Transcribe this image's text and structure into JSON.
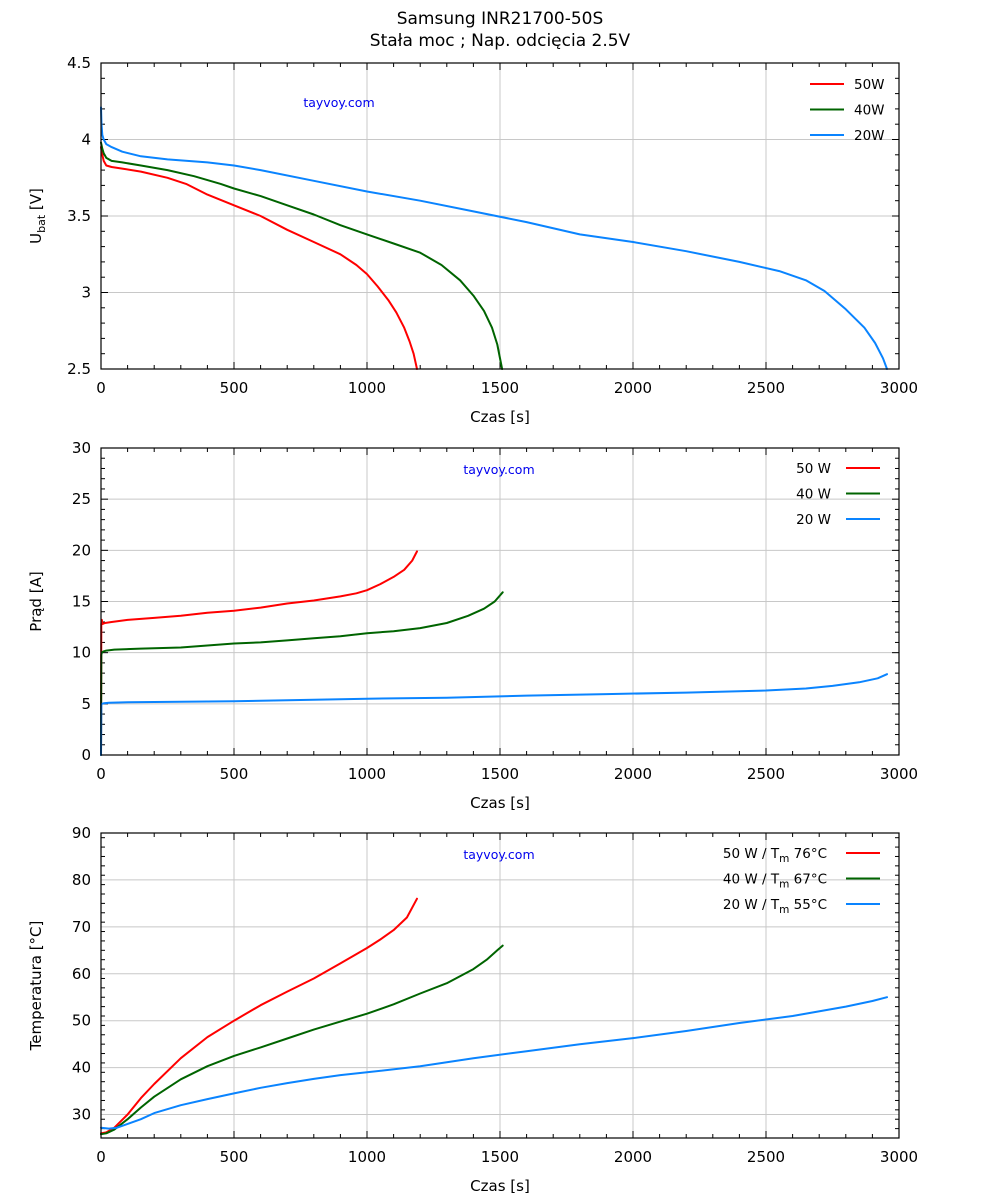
{
  "title": {
    "line1": "Samsung INR21700-50S",
    "line2": "Stała moc  ;  Nap. odcięcia 2.5V"
  },
  "colors": {
    "50W": "#ff0000",
    "40W": "#006400",
    "20W": "#0a84ff",
    "grid": "#c8c8c8",
    "watermark": "#0000ee"
  },
  "chart_data": [
    {
      "type": "line",
      "id": "voltage",
      "title": "",
      "xlabel": "Czas [s]",
      "ylabel": "U_bat [V]",
      "ylabel_main": "U",
      "ylabel_sub": "bat",
      "ylabel_unit": " [V]",
      "xlim": [
        0,
        3000
      ],
      "ylim": [
        2.5,
        4.5
      ],
      "xticks": [
        0,
        500,
        1000,
        1500,
        2000,
        2500,
        3000
      ],
      "yticks": [
        2.5,
        3,
        3.5,
        4,
        4.5
      ],
      "ytick_labels": [
        "2.5",
        "3",
        "3.5",
        "4",
        "4.5"
      ],
      "grid": true,
      "legend_position": "top-right",
      "legend_style": "line-first",
      "watermark": "tayvoy.com",
      "series": [
        {
          "name": "50W",
          "legend": "50W",
          "color_key": "50W",
          "x": [
            0,
            5,
            10,
            20,
            40,
            80,
            150,
            250,
            320,
            400,
            500,
            600,
            700,
            800,
            900,
            960,
            1000,
            1040,
            1080,
            1110,
            1140,
            1160,
            1175,
            1188
          ],
          "y": [
            3.95,
            3.9,
            3.86,
            3.83,
            3.82,
            3.81,
            3.79,
            3.75,
            3.71,
            3.64,
            3.57,
            3.5,
            3.41,
            3.33,
            3.25,
            3.18,
            3.12,
            3.04,
            2.95,
            2.87,
            2.77,
            2.68,
            2.6,
            2.5
          ]
        },
        {
          "name": "40W",
          "legend": "40W",
          "color_key": "40W",
          "x": [
            0,
            5,
            10,
            20,
            40,
            80,
            150,
            250,
            350,
            450,
            500,
            600,
            700,
            800,
            900,
            1000,
            1100,
            1200,
            1280,
            1350,
            1400,
            1440,
            1470,
            1490,
            1508
          ],
          "y": [
            3.98,
            3.94,
            3.91,
            3.88,
            3.86,
            3.85,
            3.83,
            3.8,
            3.76,
            3.71,
            3.68,
            3.63,
            3.57,
            3.51,
            3.44,
            3.38,
            3.32,
            3.26,
            3.18,
            3.08,
            2.98,
            2.88,
            2.77,
            2.66,
            2.5
          ]
        },
        {
          "name": "20W",
          "legend": "20W",
          "color_key": "20W",
          "x": [
            0,
            2,
            5,
            10,
            20,
            40,
            80,
            150,
            250,
            400,
            500,
            600,
            800,
            1000,
            1200,
            1400,
            1600,
            1800,
            2000,
            2200,
            2400,
            2550,
            2650,
            2720,
            2800,
            2870,
            2910,
            2940,
            2955
          ],
          "y": [
            4.21,
            4.1,
            4.03,
            4.0,
            3.97,
            3.95,
            3.92,
            3.89,
            3.87,
            3.85,
            3.83,
            3.8,
            3.73,
            3.66,
            3.6,
            3.53,
            3.46,
            3.38,
            3.33,
            3.27,
            3.2,
            3.14,
            3.08,
            3.01,
            2.89,
            2.77,
            2.67,
            2.57,
            2.5
          ]
        }
      ]
    },
    {
      "type": "line",
      "id": "current",
      "title": "",
      "xlabel": "Czas [s]",
      "ylabel": "Prąd [A]",
      "xlim": [
        0,
        3000
      ],
      "ylim": [
        0,
        30
      ],
      "xticks": [
        0,
        500,
        1000,
        1500,
        2000,
        2500,
        3000
      ],
      "yticks": [
        0,
        5,
        10,
        15,
        20,
        25,
        30
      ],
      "ytick_labels": [
        "0",
        "5",
        "10",
        "15",
        "20",
        "25",
        "30"
      ],
      "grid": true,
      "legend_position": "top-right",
      "legend_style": "text-first",
      "watermark": "tayvoy.com",
      "series": [
        {
          "name": "50W",
          "legend": "50 W",
          "color_key": "50W",
          "x": [
            0,
            1,
            3,
            6,
            15,
            40,
            100,
            200,
            300,
            400,
            500,
            600,
            700,
            800,
            900,
            960,
            1000,
            1050,
            1100,
            1140,
            1170,
            1188
          ],
          "y": [
            0,
            12.8,
            13.2,
            12.8,
            12.9,
            13.0,
            13.2,
            13.4,
            13.6,
            13.9,
            14.1,
            14.4,
            14.8,
            15.1,
            15.5,
            15.8,
            16.1,
            16.7,
            17.4,
            18.1,
            19.0,
            19.9
          ]
        },
        {
          "name": "40W",
          "legend": "40 W",
          "color_key": "40W",
          "x": [
            0,
            1,
            3,
            8,
            20,
            50,
            150,
            300,
            400,
            500,
            600,
            700,
            800,
            900,
            1000,
            1100,
            1200,
            1300,
            1380,
            1440,
            1480,
            1510
          ],
          "y": [
            0,
            9.8,
            10.0,
            10.1,
            10.2,
            10.3,
            10.4,
            10.5,
            10.7,
            10.9,
            11.0,
            11.2,
            11.4,
            11.6,
            11.9,
            12.1,
            12.4,
            12.9,
            13.6,
            14.3,
            15.0,
            15.9
          ]
        },
        {
          "name": "20W",
          "legend": "20 W",
          "color_key": "20W",
          "x": [
            0,
            1,
            3,
            10,
            30,
            100,
            300,
            500,
            700,
            1000,
            1300,
            1600,
            1900,
            2200,
            2500,
            2650,
            2750,
            2850,
            2920,
            2955
          ],
          "y": [
            0,
            4.9,
            5.0,
            5.05,
            5.1,
            5.15,
            5.2,
            5.25,
            5.35,
            5.5,
            5.6,
            5.8,
            5.95,
            6.1,
            6.3,
            6.5,
            6.75,
            7.1,
            7.5,
            7.9
          ]
        }
      ]
    },
    {
      "type": "line",
      "id": "temperature",
      "title": "",
      "xlabel": "Czas [s]",
      "ylabel": "Temperatura [°C]",
      "xlim": [
        0,
        3000
      ],
      "ylim": [
        25,
        90
      ],
      "xticks": [
        0,
        500,
        1000,
        1500,
        2000,
        2500,
        3000
      ],
      "yticks": [
        30,
        40,
        50,
        60,
        70,
        80,
        90
      ],
      "ytick_labels": [
        "30",
        "40",
        "50",
        "60",
        "70",
        "80",
        "90"
      ],
      "grid": true,
      "legend_position": "top-right",
      "legend_style": "text-first",
      "watermark": "tayvoy.com",
      "series": [
        {
          "name": "50W",
          "legend": "50 W  / Tm 76°C",
          "legend_main": "50 W  / T",
          "legend_sub": "m",
          "legend_tail": " 76°C",
          "color_key": "50W",
          "x": [
            0,
            20,
            50,
            100,
            150,
            200,
            300,
            400,
            500,
            600,
            700,
            800,
            900,
            1000,
            1050,
            1100,
            1150,
            1188
          ],
          "y": [
            26,
            26.2,
            27.2,
            30,
            33.5,
            36.5,
            42,
            46.5,
            50,
            53.3,
            56.2,
            59,
            62.2,
            65.5,
            67.3,
            69.3,
            72,
            76
          ]
        },
        {
          "name": "40W",
          "legend": "40 W  / Tm 67°C",
          "legend_main": "40 W  / T",
          "legend_sub": "m",
          "legend_tail": " 67°C",
          "color_key": "40W",
          "x": [
            0,
            20,
            50,
            100,
            150,
            200,
            300,
            400,
            500,
            600,
            700,
            800,
            900,
            1000,
            1100,
            1200,
            1300,
            1400,
            1450,
            1490,
            1510
          ],
          "y": [
            25.8,
            26,
            26.8,
            29,
            31.5,
            33.8,
            37.5,
            40.3,
            42.5,
            44.3,
            46.2,
            48.1,
            49.8,
            51.5,
            53.5,
            55.8,
            58,
            61,
            63,
            65,
            66
          ]
        },
        {
          "name": "20W",
          "legend": "20 W  / Tm 55°C",
          "legend_main": "20 W  / T",
          "legend_sub": "m",
          "legend_tail": " 55°C",
          "color_key": "20W",
          "x": [
            0,
            30,
            60,
            100,
            150,
            200,
            300,
            400,
            500,
            600,
            700,
            800,
            900,
            1000,
            1200,
            1400,
            1600,
            1800,
            2000,
            2200,
            2400,
            2600,
            2800,
            2900,
            2955
          ],
          "y": [
            27.2,
            27,
            27.2,
            28,
            29,
            30.3,
            32,
            33.3,
            34.5,
            35.7,
            36.7,
            37.6,
            38.4,
            39,
            40.3,
            42,
            43.5,
            45,
            46.3,
            47.8,
            49.5,
            51,
            53,
            54.2,
            55
          ]
        }
      ]
    }
  ]
}
